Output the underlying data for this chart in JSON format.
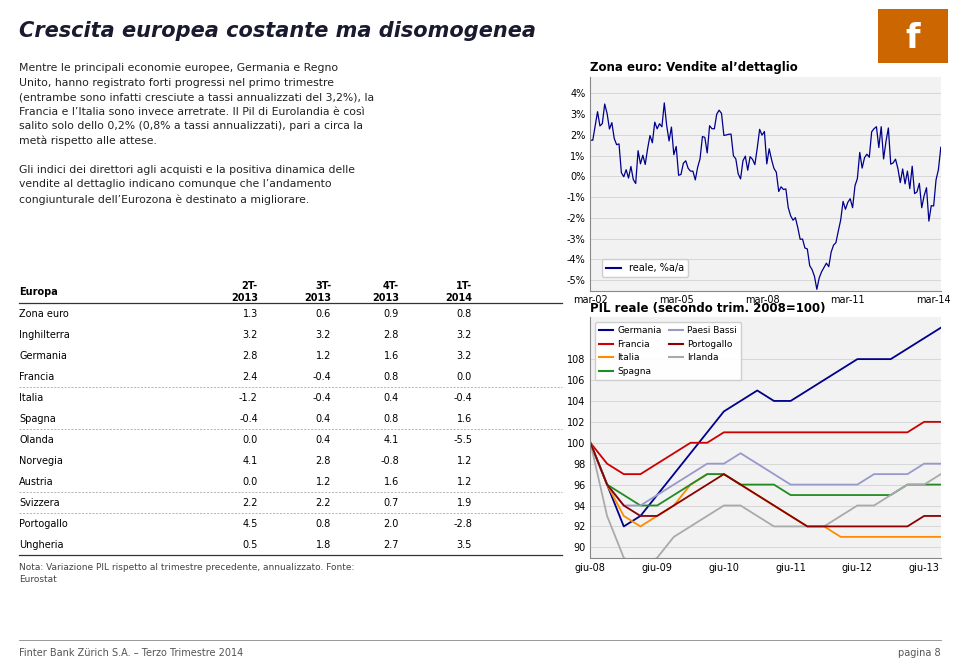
{
  "title": "Crescita europea costante ma disomogenea",
  "logo_text": "f",
  "left_text": "Mentre le principali economie europee, Germania e Regno\nUnito, hanno registrato forti progressi nel primo trimestre\n(entrambe sono infatti cresciute a tassi annualizzati del 3,2%), la\nFrancia e l’Italia sono invece arretrate. Il Pil di Eurolandia è così\nsalito solo dello 0,2% (0,8% a tassi annualizzati), pari a circa la\nmetà rispetto alle attese.\n\nGli indici dei direttori agli acquisti e la positiva dinamica delle\nvendite al dettaglio indicano comunque che l’andamento\ncongiunturale dell’Eurozona è destinato a migliorare.",
  "top_chart_title": "Zona euro: Vendite al’dettaglio",
  "top_chart_yticks": [
    4,
    3,
    2,
    1,
    0,
    -1,
    -2,
    -3,
    -4,
    -5
  ],
  "top_chart_xlabels": [
    "mar-02",
    "mar-05",
    "mar-08",
    "mar-11",
    "mar-14"
  ],
  "top_chart_legend": "reale, %a/a",
  "top_chart_line_color": "#00008B",
  "bottom_chart_title": "PIL reale (secondo trim. 2008=100)",
  "bottom_chart_yticks": [
    90,
    92,
    94,
    96,
    98,
    100,
    102,
    104,
    106,
    108
  ],
  "bottom_chart_xlabels": [
    "giu-08",
    "giu-09",
    "giu-10",
    "giu-11",
    "giu-12",
    "giu-13"
  ],
  "table_header": [
    "Europa",
    "2T-\n2013",
    "3T-\n2013",
    "4T-\n2013",
    "1T-\n2014"
  ],
  "table_rows": [
    [
      "Zona euro",
      "1.3",
      "0.6",
      "0.9",
      "0.8"
    ],
    [
      "Inghilterra",
      "3.2",
      "3.2",
      "2.8",
      "3.2"
    ],
    [
      "Germania",
      "2.8",
      "1.2",
      "1.6",
      "3.2"
    ],
    [
      "Francia",
      "2.4",
      "-0.4",
      "0.8",
      "0.0"
    ],
    [
      "Italia",
      "-1.2",
      "-0.4",
      "0.4",
      "-0.4"
    ],
    [
      "Spagna",
      "-0.4",
      "0.4",
      "0.8",
      "1.6"
    ],
    [
      "Olanda",
      "0.0",
      "0.4",
      "4.1",
      "-5.5"
    ],
    [
      "Norvegia",
      "4.1",
      "2.8",
      "-0.8",
      "1.2"
    ],
    [
      "Austria",
      "0.0",
      "1.2",
      "1.6",
      "1.2"
    ],
    [
      "Svizzera",
      "2.2",
      "2.2",
      "0.7",
      "1.9"
    ],
    [
      "Portogallo",
      "4.5",
      "0.8",
      "2.0",
      "-2.8"
    ],
    [
      "Ungheria",
      "0.5",
      "1.8",
      "2.7",
      "3.5"
    ]
  ],
  "table_sep_after": [
    3,
    5,
    8,
    9
  ],
  "table_note": "Nota: Variazione PIL rispetto al trimestre precedente, annualizzato. Fonte:\nEurostat",
  "footer_left": "Finter Bank Zürich S.A. – Terzo Trimestre 2014",
  "footer_right": "pagina 8",
  "bg_color": "#FFFFFF"
}
